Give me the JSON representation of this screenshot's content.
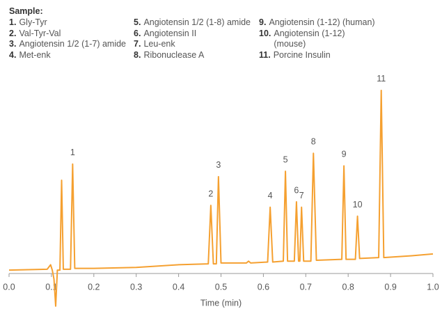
{
  "chart_data": {
    "type": "line",
    "sample_title": "Sample:",
    "sample_items": [
      {
        "num": "1.",
        "name": "Gly-Tyr"
      },
      {
        "num": "2.",
        "name": "Val-Tyr-Val"
      },
      {
        "num": "3.",
        "name": "Angiotensin 1/2 (1-7) amide"
      },
      {
        "num": "4.",
        "name": "Met-enk"
      },
      {
        "num": "5.",
        "name": "Angiotensin 1/2 (1-8) amide"
      },
      {
        "num": "6.",
        "name": "Angiotensin II"
      },
      {
        "num": "7.",
        "name": "Leu-enk"
      },
      {
        "num": "8.",
        "name": "Ribonuclease A"
      },
      {
        "num": "9.",
        "name": "Angiotensin (1-12) (human)"
      },
      {
        "num": "10.",
        "name": "Angiotensin (1-12) (mouse)"
      },
      {
        "num": "11.",
        "name": "Porcine Insulin"
      }
    ],
    "x_label": "Time (min)",
    "x": [
      0,
      0.09,
      0.098,
      0.102,
      0.106,
      0.11,
      0.114,
      0.12,
      0.124,
      0.128,
      0.145,
      0.15,
      0.155,
      0.2,
      0.3,
      0.4,
      0.47,
      0.476,
      0.482,
      0.489,
      0.494,
      0.5,
      0.56,
      0.565,
      0.57,
      0.61,
      0.616,
      0.622,
      0.647,
      0.652,
      0.657,
      0.673,
      0.678,
      0.683,
      0.686,
      0.69,
      0.695,
      0.712,
      0.718,
      0.725,
      0.785,
      0.79,
      0.795,
      0.817,
      0.822,
      0.827,
      0.872,
      0.878,
      0.884,
      0.95,
      1.0
    ],
    "series": [
      {
        "color": "#f5a030",
        "values": [
          0,
          0.5,
          3,
          0,
          -5,
          -20,
          0,
          0,
          50,
          0.5,
          0.5,
          59,
          1,
          1,
          1.5,
          3,
          3.5,
          36,
          3.5,
          3.5,
          52,
          4,
          4,
          5,
          4,
          4.5,
          35,
          4.5,
          5,
          55,
          5,
          5,
          38,
          5,
          5,
          35,
          5,
          5,
          65,
          5.5,
          6,
          58,
          6,
          6,
          30,
          6.5,
          7,
          100,
          7,
          8,
          9
        ]
      }
    ],
    "annotations": [
      {
        "text": "1",
        "x": 0.15
      },
      {
        "text": "2",
        "x": 0.476
      },
      {
        "text": "3",
        "x": 0.494
      },
      {
        "text": "4",
        "x": 0.616
      },
      {
        "text": "5",
        "x": 0.652
      },
      {
        "text": "6",
        "x": 0.678
      },
      {
        "text": "7",
        "x": 0.69
      },
      {
        "text": "8",
        "x": 0.718
      },
      {
        "text": "9",
        "x": 0.79
      },
      {
        "text": "10",
        "x": 0.822
      },
      {
        "text": "11",
        "x": 0.878
      }
    ],
    "xlim": [
      0,
      1
    ],
    "ylim": [
      -22,
      110
    ],
    "xticks": [
      {
        "value": 0,
        "label": "0.0"
      },
      0.1,
      0.2,
      0.3,
      0.4,
      0.5,
      0.6,
      0.7,
      0.8,
      0.9,
      {
        "value": 1,
        "label": "1.0"
      }
    ]
  }
}
